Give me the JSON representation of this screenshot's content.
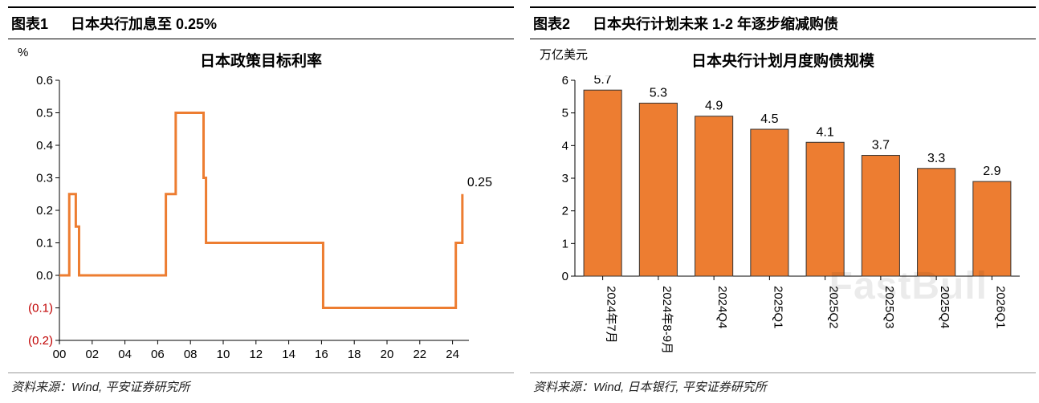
{
  "chart1": {
    "header_no": "图表1",
    "header_title": "日本央行加息至 0.25%",
    "y_unit": "%",
    "title": "日本政策目标利率",
    "type": "line-step",
    "line_color": "#ed7d31",
    "line_width": 3,
    "neg_tick_color": "#c00000",
    "tick_fontsize": 15,
    "y_min": -0.2,
    "y_max": 0.6,
    "y_ticks": [
      -0.2,
      -0.1,
      0.0,
      0.1,
      0.2,
      0.3,
      0.4,
      0.5,
      0.6
    ],
    "y_tick_labels": [
      "(0.2)",
      "(0.1)",
      "0.0",
      "0.1",
      "0.2",
      "0.3",
      "0.4",
      "0.5",
      "0.6"
    ],
    "x_min": 2000,
    "x_max": 2025,
    "x_ticks": [
      2000,
      2002,
      2004,
      2006,
      2008,
      2010,
      2012,
      2014,
      2016,
      2018,
      2020,
      2022,
      2024
    ],
    "x_tick_labels": [
      "00",
      "02",
      "04",
      "06",
      "08",
      "10",
      "12",
      "14",
      "16",
      "18",
      "20",
      "22",
      "24"
    ],
    "end_label": "0.25",
    "series": [
      {
        "x": 2000.0,
        "y": 0.0
      },
      {
        "x": 2000.6,
        "y": 0.0
      },
      {
        "x": 2000.6,
        "y": 0.25
      },
      {
        "x": 2001.0,
        "y": 0.25
      },
      {
        "x": 2001.0,
        "y": 0.15
      },
      {
        "x": 2001.2,
        "y": 0.15
      },
      {
        "x": 2001.2,
        "y": 0.0
      },
      {
        "x": 2006.5,
        "y": 0.0
      },
      {
        "x": 2006.5,
        "y": 0.25
      },
      {
        "x": 2007.1,
        "y": 0.25
      },
      {
        "x": 2007.1,
        "y": 0.5
      },
      {
        "x": 2008.8,
        "y": 0.5
      },
      {
        "x": 2008.8,
        "y": 0.3
      },
      {
        "x": 2008.95,
        "y": 0.3
      },
      {
        "x": 2008.95,
        "y": 0.1
      },
      {
        "x": 2016.1,
        "y": 0.1
      },
      {
        "x": 2016.1,
        "y": -0.1
      },
      {
        "x": 2024.2,
        "y": -0.1
      },
      {
        "x": 2024.2,
        "y": 0.1
      },
      {
        "x": 2024.6,
        "y": 0.1
      },
      {
        "x": 2024.6,
        "y": 0.25
      }
    ],
    "source": "资料来源：Wind, 平安证券研究所"
  },
  "chart2": {
    "header_no": "图表2",
    "header_title": "日本央行计划未来 1-2 年逐步缩减购债",
    "y_unit": "万亿美元",
    "title": "日本央行计划月度购债规模",
    "type": "bar",
    "bar_fill": "#ed7d31",
    "bar_border": "#333333",
    "tick_fontsize": 15,
    "value_fontsize": 16,
    "y_min": 0,
    "y_max": 6,
    "y_ticks": [
      0,
      1,
      2,
      3,
      4,
      5,
      6
    ],
    "categories": [
      "2024年7月",
      "2024年8-9月",
      "2024Q4",
      "2025Q1",
      "2025Q2",
      "2025Q3",
      "2025Q4",
      "2026Q1"
    ],
    "values": [
      5.7,
      5.3,
      4.9,
      4.5,
      4.1,
      3.7,
      3.3,
      2.9
    ],
    "source": "资料来源：Wind, 日本银行, 平安证券研究所"
  },
  "watermark": "FastBull"
}
